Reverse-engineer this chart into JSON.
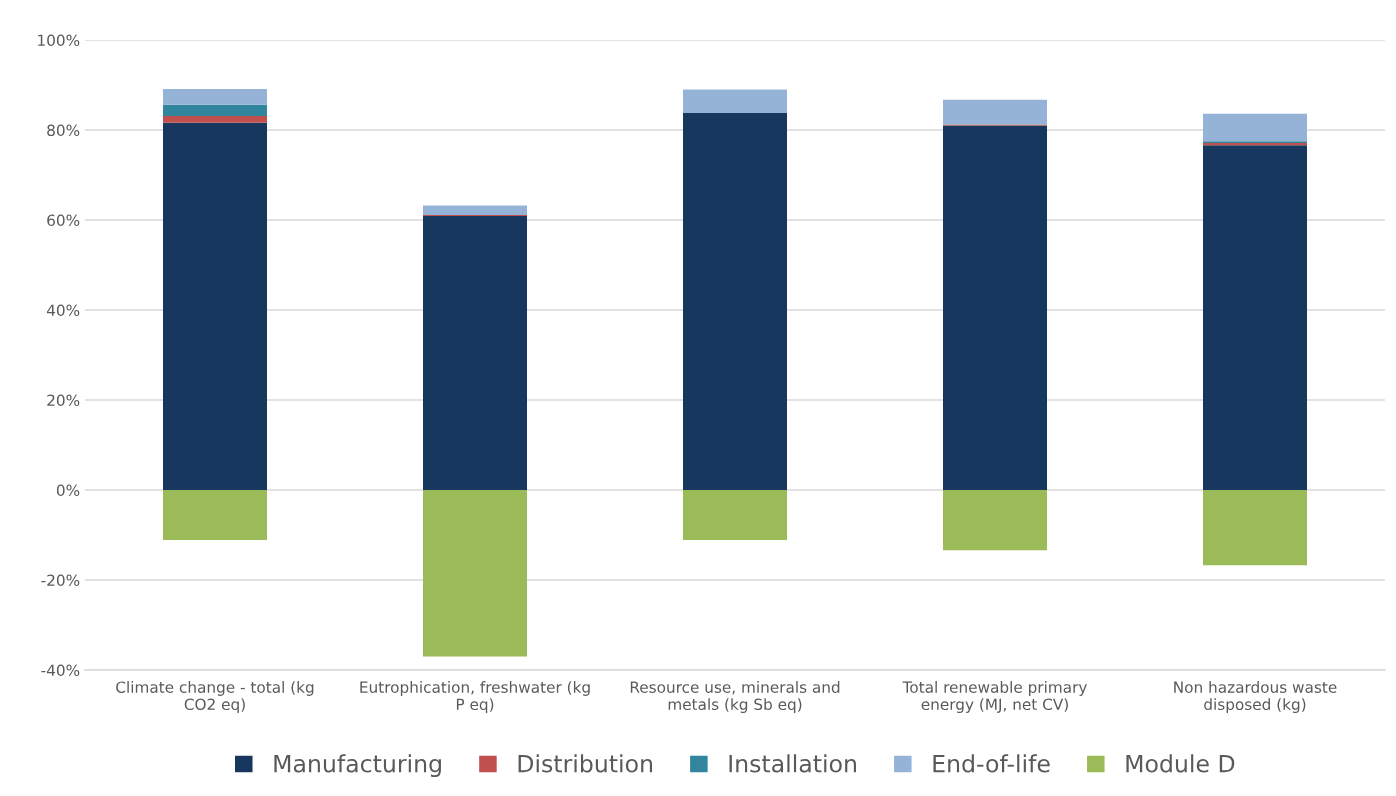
{
  "chart_data": {
    "type": "bar",
    "stacked": true,
    "categories": [
      "Climate change - total (kg CO2 eq)",
      "Eutrophication, freshwater (kg P eq)",
      "Resource use, minerals and metals (kg Sb eq)",
      "Total renewable primary energy (MJ, net CV)",
      "Non hazardous waste disposed (kg)"
    ],
    "series": [
      {
        "name": "Manufacturing",
        "color": "#17375e",
        "values": [
          81.6,
          60.9,
          83.8,
          81.0,
          76.6
        ]
      },
      {
        "name": "Distribution",
        "color": "#c0504d",
        "values": [
          1.5,
          0.2,
          null,
          0.2,
          0.5
        ]
      },
      {
        "name": "Installation",
        "color": "#31859c",
        "values": [
          2.5,
          0.0,
          0.0,
          0.0,
          0.4
        ]
      },
      {
        "name": "End-of-life",
        "color": "#95b3d7",
        "values": [
          3.5,
          2.1,
          5.2,
          5.5,
          6.1
        ]
      },
      {
        "name": "Module D",
        "color": "#9bbb59",
        "values": [
          -11.1,
          -37.0,
          -11.1,
          -13.4,
          -16.7
        ]
      }
    ],
    "ylim": [
      -40,
      100
    ],
    "yticks": [
      {
        "value": -40,
        "label": "-40%"
      },
      {
        "value": -20,
        "label": "-20%"
      },
      {
        "value": 0,
        "label": "0%"
      },
      {
        "value": 20,
        "label": "20%"
      },
      {
        "value": 40,
        "label": "40%"
      },
      {
        "value": 60,
        "label": "60%"
      },
      {
        "value": 80,
        "label": "80%"
      },
      {
        "value": 100,
        "label": "100%"
      }
    ],
    "grid": "y",
    "legend": "bottom"
  }
}
